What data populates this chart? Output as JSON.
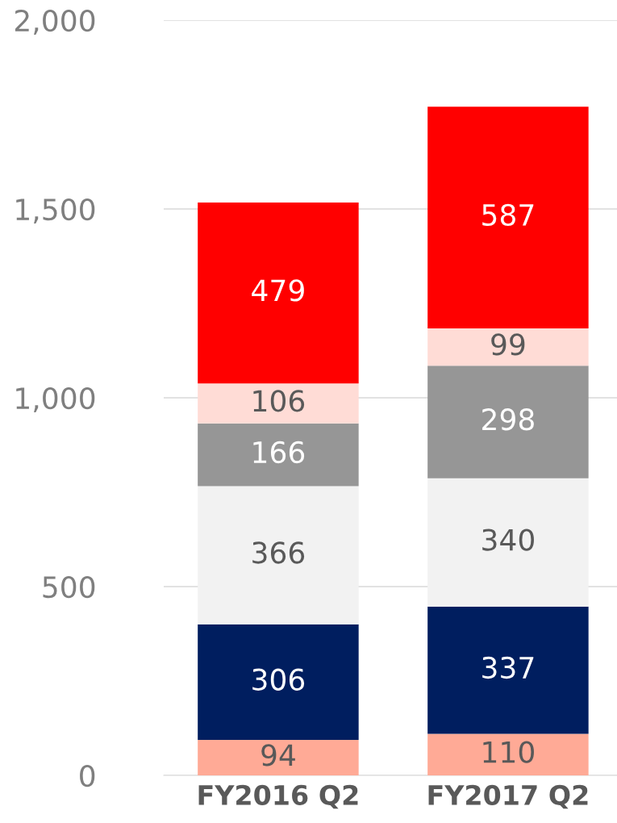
{
  "chart_data": {
    "type": "bar",
    "stacked": true,
    "categories": [
      "FY2016 Q2",
      "FY2017 Q2"
    ],
    "series": [
      {
        "color": "#ffaa96",
        "values": [
          94,
          110
        ]
      },
      {
        "color": "#001e5f",
        "values": [
          306,
          337
        ]
      },
      {
        "color": "#f2f2f2",
        "values": [
          366,
          340
        ]
      },
      {
        "color": "#969696",
        "values": [
          166,
          298
        ]
      },
      {
        "color": "#ffdcd6",
        "values": [
          106,
          99
        ]
      },
      {
        "color": "#ff0000",
        "values": [
          479,
          587
        ]
      }
    ],
    "ylim": [
      0,
      2000
    ],
    "yticks": [
      {
        "value": 0,
        "label": "0"
      },
      {
        "value": 500,
        "label": "500"
      },
      {
        "value": 1000,
        "label": "1,000"
      },
      {
        "value": 1500,
        "label": "1,500"
      },
      {
        "value": 2000,
        "label": "2,000"
      }
    ],
    "grid": "y",
    "data_labels": true
  }
}
